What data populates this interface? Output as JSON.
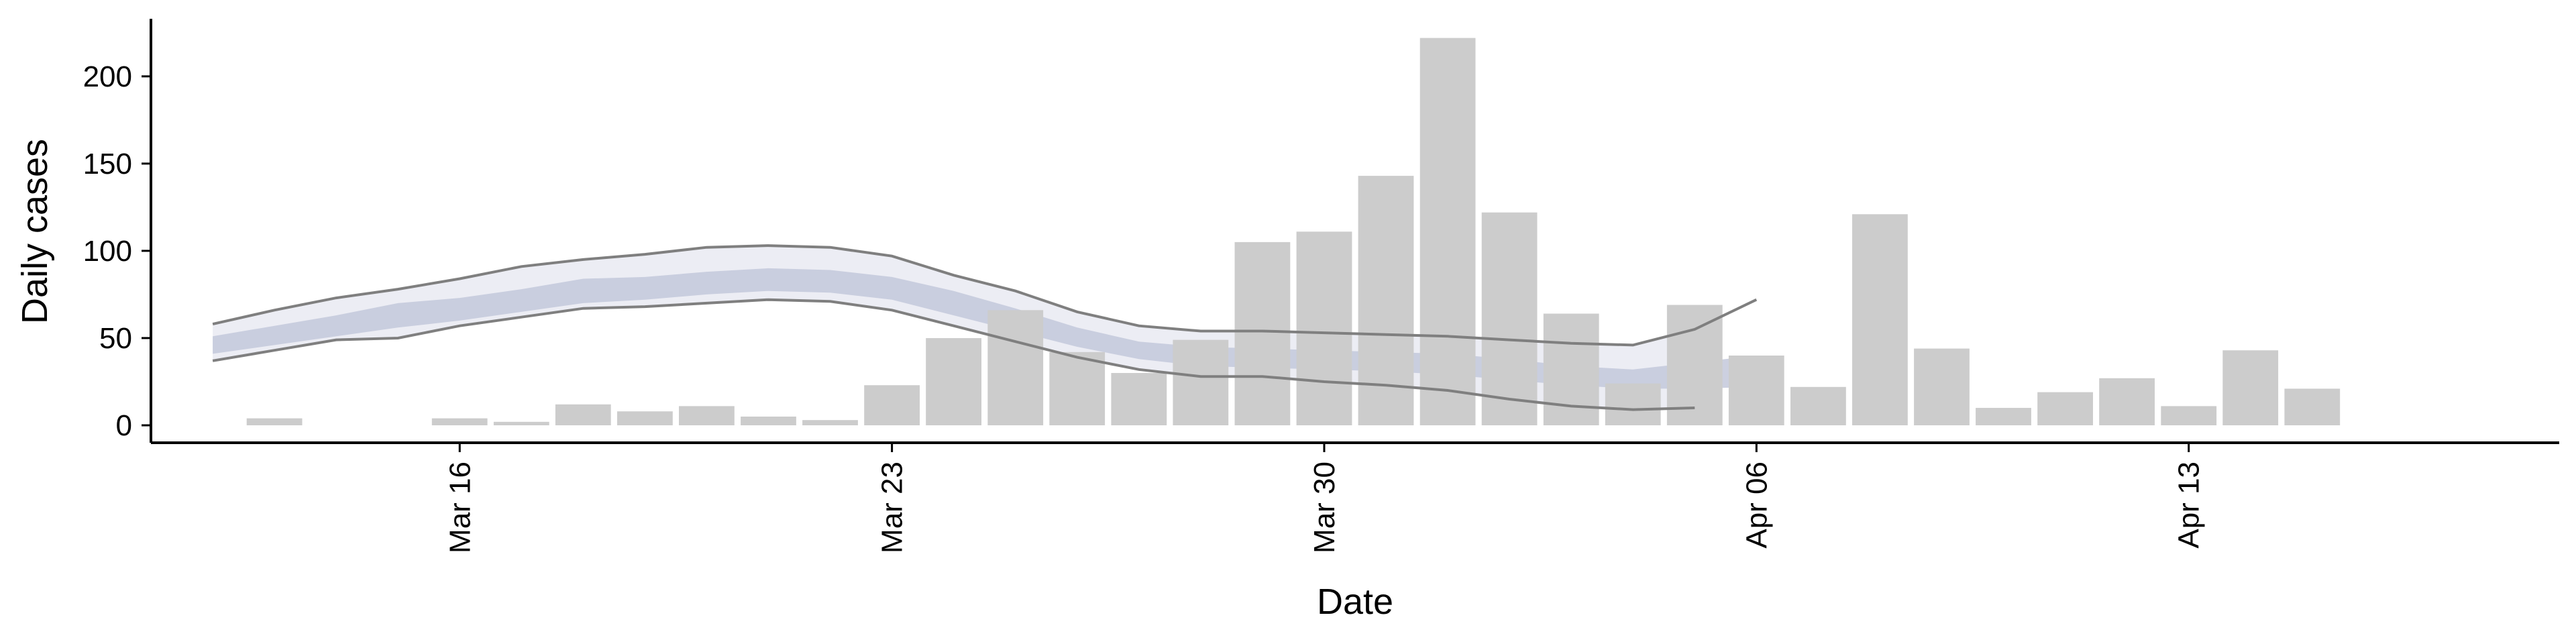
{
  "chart_data": {
    "type": "bar",
    "xlabel": "Date",
    "ylabel": "Daily cases",
    "x_ticks": [
      {
        "date": "2020-03-16",
        "label": "Mar 16"
      },
      {
        "date": "2020-03-23",
        "label": "Mar 23"
      },
      {
        "date": "2020-03-30",
        "label": "Mar 30"
      },
      {
        "date": "2020-04-06",
        "label": "Apr 06"
      },
      {
        "date": "2020-04-13",
        "label": "Apr 13"
      }
    ],
    "xlim": [
      "2020-03-11",
      "2020-04-19"
    ],
    "y_ticks": [
      0,
      50,
      100,
      150,
      200
    ],
    "ylim": [
      -10,
      233
    ],
    "grid": false,
    "colors": {
      "bars": "#cccccc",
      "ribbon_outer": "#e6e7f0",
      "ribbon_inner": "#c3c8da",
      "outer_line": "#7f7f7f"
    },
    "bars": {
      "dates": [
        "2020-03-13",
        "2020-03-14",
        "2020-03-15",
        "2020-03-16",
        "2020-03-17",
        "2020-03-18",
        "2020-03-19",
        "2020-03-20",
        "2020-03-21",
        "2020-03-22",
        "2020-03-23",
        "2020-03-24",
        "2020-03-25",
        "2020-03-26",
        "2020-03-27",
        "2020-03-28",
        "2020-03-29",
        "2020-03-30",
        "2020-03-31",
        "2020-04-01",
        "2020-04-02",
        "2020-04-03",
        "2020-04-04",
        "2020-04-05",
        "2020-04-06",
        "2020-04-07",
        "2020-04-08",
        "2020-04-09",
        "2020-04-10",
        "2020-04-11",
        "2020-04-12",
        "2020-04-13",
        "2020-04-14",
        "2020-04-15",
        "2020-04-16",
        "2020-04-17"
      ],
      "values": [
        4,
        0,
        0,
        4,
        2,
        12,
        8,
        11,
        5,
        3,
        23,
        50,
        66,
        42,
        30,
        49,
        105,
        111,
        143,
        222,
        122,
        64,
        24,
        69,
        40,
        22,
        121,
        44,
        10,
        19,
        27,
        11,
        43,
        21,
        0,
        0
      ]
    },
    "estimate": {
      "dates": [
        "2020-03-12",
        "2020-03-13",
        "2020-03-14",
        "2020-03-15",
        "2020-03-16",
        "2020-03-17",
        "2020-03-18",
        "2020-03-19",
        "2020-03-20",
        "2020-03-21",
        "2020-03-22",
        "2020-03-23",
        "2020-03-24",
        "2020-03-25",
        "2020-03-26",
        "2020-03-27",
        "2020-03-28",
        "2020-03-29",
        "2020-03-30",
        "2020-03-31",
        "2020-04-01",
        "2020-04-02",
        "2020-04-03",
        "2020-04-04",
        "2020-04-05",
        "2020-04-06",
        "2020-04-07"
      ],
      "outer_upper": [
        58,
        66,
        73,
        78,
        84,
        91,
        95,
        98,
        102,
        103,
        102,
        97,
        86,
        77,
        65,
        57,
        54,
        54,
        53,
        52,
        51,
        49,
        47,
        46,
        55,
        72,
        null
      ],
      "outer_lower": [
        37,
        43,
        49,
        50,
        57,
        62,
        67,
        68,
        70,
        72,
        71,
        66,
        57,
        48,
        39,
        32,
        28,
        28,
        25,
        23,
        20,
        15,
        11,
        9,
        10,
        null,
        null
      ],
      "inner_upper": [
        51,
        57,
        63,
        70,
        73,
        78,
        84,
        85,
        88,
        90,
        89,
        85,
        77,
        67,
        56,
        48,
        45,
        44,
        43,
        42,
        41,
        38,
        34,
        32,
        36,
        40,
        null
      ],
      "inner_lower": [
        41,
        46,
        51,
        56,
        60,
        65,
        70,
        72,
        75,
        77,
        76,
        72,
        63,
        54,
        45,
        38,
        34,
        33,
        32,
        31,
        29,
        26,
        23,
        21,
        21,
        22,
        null
      ]
    }
  }
}
